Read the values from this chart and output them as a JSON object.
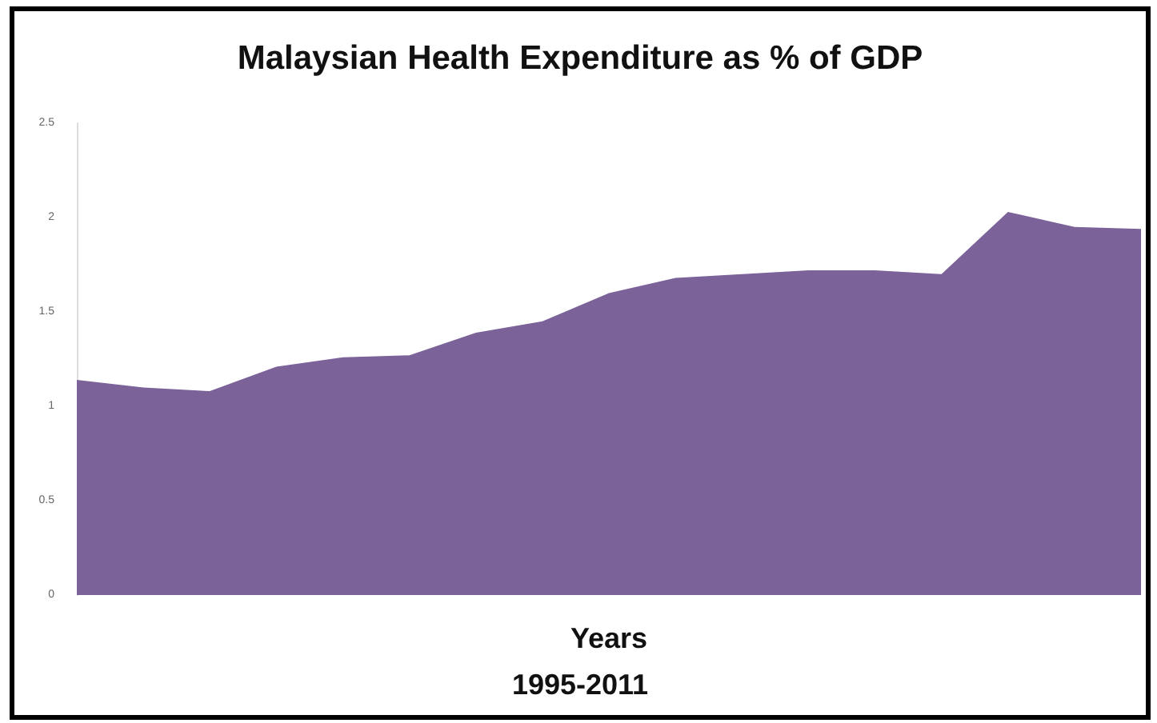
{
  "chart_data": {
    "type": "area",
    "title": "Malaysian Health Expenditure as % of GDP",
    "xlabel": "Years",
    "annotations": [
      "1995-2011"
    ],
    "categories": [
      null,
      null,
      null,
      null,
      null,
      null,
      null,
      null,
      null,
      null,
      null,
      null,
      null,
      null,
      null,
      null,
      null
    ],
    "values": [
      1.14,
      1.1,
      1.08,
      1.21,
      1.26,
      1.27,
      1.39,
      1.45,
      1.6,
      1.68,
      1.7,
      1.72,
      1.72,
      1.7,
      2.03,
      1.95,
      1.94
    ],
    "color": "#7b6299",
    "ylim": [
      0,
      2.5
    ],
    "yticks": [
      0,
      0.5,
      1,
      1.5,
      2,
      2.5
    ],
    "grid": false
  }
}
